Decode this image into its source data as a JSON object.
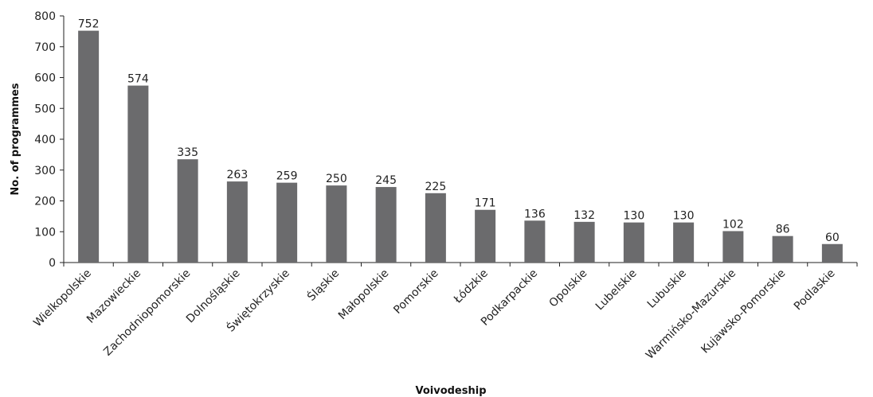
{
  "chart_data": {
    "type": "bar",
    "title": "",
    "xlabel": "Voivodeship",
    "ylabel": "No. of programmes",
    "ylim": [
      0,
      800
    ],
    "yticks": [
      0,
      100,
      200,
      300,
      400,
      500,
      600,
      700,
      800
    ],
    "grid": false,
    "legend": "none",
    "bar_color": "#6b6b6d",
    "categories": [
      "Wielkopolskie",
      "Mazowieckie",
      "Zachodniopomorskie",
      "Dolnośląskie",
      "Świętokrzyskie",
      "Śląskie",
      "Małopolskie",
      "Pomorskie",
      "Łódzkie",
      "Podkarpackie",
      "Opolskie",
      "Lubelskie",
      "Lubuskie",
      "Warmińsko-Mazurskie",
      "Kujawsko-Pomorskie",
      "Podlaskie"
    ],
    "values": [
      752,
      574,
      335,
      263,
      259,
      250,
      245,
      225,
      171,
      136,
      132,
      130,
      130,
      102,
      86,
      60
    ]
  }
}
